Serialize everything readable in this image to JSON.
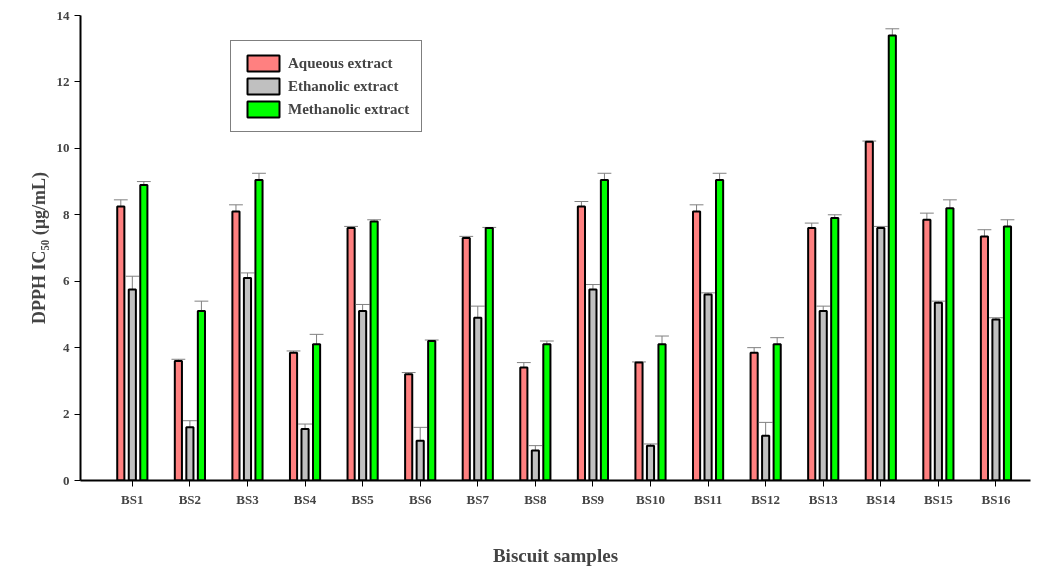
{
  "chart_data": {
    "type": "bar",
    "xlabel": "Biscuit samples",
    "ylabel": "DPPH IC₅₀ (µg/mL)",
    "categories": [
      "BS1",
      "BS2",
      "BS3",
      "BS4",
      "BS5",
      "BS6",
      "BS7",
      "BS8",
      "BS9",
      "BS10",
      "BS11",
      "BS12",
      "BS13",
      "BS14",
      "BS15",
      "BS16"
    ],
    "series": [
      {
        "name": "Aqueous extract",
        "color": "#ff8080",
        "values": [
          8.25,
          3.6,
          8.1,
          3.85,
          7.6,
          3.2,
          7.3,
          3.4,
          8.25,
          3.55,
          8.1,
          3.85,
          7.6,
          10.2,
          7.85,
          7.35
        ],
        "errors": [
          0.2,
          0.05,
          0.2,
          0.05,
          0.05,
          0.05,
          0.05,
          0.15,
          0.15,
          0.02,
          0.2,
          0.15,
          0.15,
          0.02,
          0.2,
          0.2
        ]
      },
      {
        "name": "Ethanolic extract",
        "color": "#c0c0c0",
        "values": [
          5.75,
          1.6,
          6.1,
          1.55,
          5.1,
          1.2,
          4.9,
          0.9,
          5.75,
          1.05,
          5.6,
          1.35,
          5.1,
          7.6,
          5.35,
          4.85
        ],
        "errors": [
          0.4,
          0.2,
          0.15,
          0.15,
          0.2,
          0.4,
          0.35,
          0.15,
          0.15,
          0.05,
          0.05,
          0.4,
          0.15,
          0.05,
          0.05,
          0.05
        ]
      },
      {
        "name": "Methanolic extract",
        "color": "#00ff00",
        "values": [
          8.9,
          5.1,
          9.05,
          4.1,
          7.8,
          4.2,
          7.6,
          4.1,
          9.05,
          4.1,
          9.05,
          4.1,
          7.9,
          13.4,
          8.2,
          7.65
        ],
        "errors": [
          0.1,
          0.3,
          0.2,
          0.3,
          0.05,
          0.03,
          0.02,
          0.1,
          0.2,
          0.25,
          0.2,
          0.2,
          0.1,
          0.2,
          0.25,
          0.2
        ]
      }
    ],
    "ylim": [
      0,
      14
    ],
    "yticks": [
      0,
      2,
      4,
      6,
      8,
      10,
      12,
      14
    ],
    "legend": "top left",
    "grid": false
  }
}
